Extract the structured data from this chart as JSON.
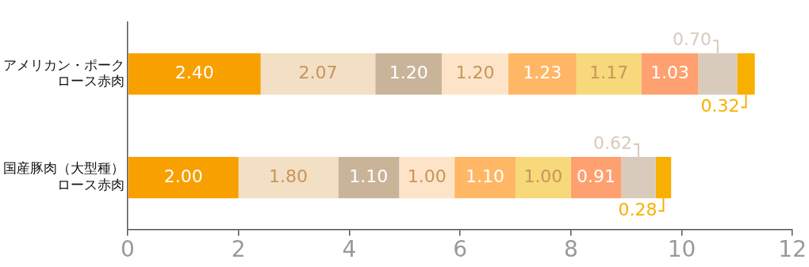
{
  "chart_data": {
    "type": "bar",
    "orientation": "horizontal",
    "stacked": true,
    "legend": false,
    "grid": false,
    "categories": [
      "アメリカン・ポークロース赤肉",
      "国産豚肉（大型種）ロース赤肉"
    ],
    "xlim": [
      0,
      12
    ],
    "xticks": [
      0,
      2,
      4,
      6,
      8,
      10,
      12
    ],
    "series": [
      {
        "color": "#f7a000",
        "values": [
          2.4,
          2.0
        ],
        "value_labels": [
          "2.40",
          "2.00"
        ]
      },
      {
        "color": "#f2dfc4",
        "values": [
          2.07,
          1.8
        ],
        "value_labels": [
          "2.07",
          "1.80"
        ]
      },
      {
        "color": "#c9b49a",
        "values": [
          1.2,
          1.1
        ],
        "value_labels": [
          "1.20",
          "1.10"
        ]
      },
      {
        "color": "#fde4c8",
        "values": [
          1.2,
          1.0
        ],
        "value_labels": [
          "1.20",
          "1.00"
        ]
      },
      {
        "color": "#ffb766",
        "values": [
          1.23,
          1.1
        ],
        "value_labels": [
          "1.23",
          "1.10"
        ]
      },
      {
        "color": "#f7d87a",
        "values": [
          1.17,
          1.0
        ],
        "value_labels": [
          "1.17",
          "1.00"
        ]
      },
      {
        "color": "#ffa070",
        "values": [
          1.03,
          0.91
        ],
        "value_labels": [
          "1.03",
          "0.91"
        ]
      },
      {
        "color": "#d8cbbb",
        "values": [
          0.7,
          0.62
        ],
        "value_labels": [
          "0.70",
          "0.62"
        ]
      },
      {
        "color": "#f8b000",
        "values": [
          0.32,
          0.28
        ],
        "value_labels": [
          "0.32",
          "0.28"
        ]
      }
    ]
  }
}
